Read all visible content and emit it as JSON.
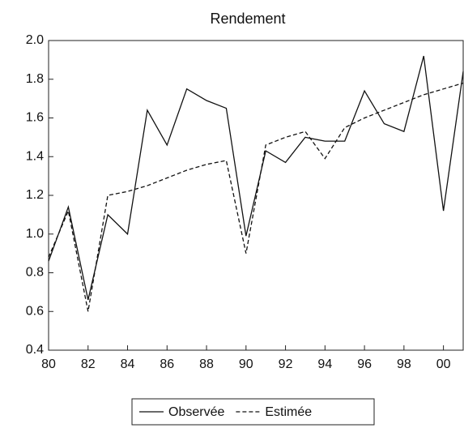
{
  "chart_data": {
    "type": "line",
    "title": "Rendement",
    "x": [
      1980,
      1981,
      1982,
      1983,
      1984,
      1985,
      1986,
      1987,
      1988,
      1989,
      1990,
      1991,
      1992,
      1993,
      1994,
      1995,
      1996,
      1997,
      1998,
      1999,
      2000,
      2001
    ],
    "series": [
      {
        "name": "Observée",
        "color": "#111111",
        "dash": false,
        "values": [
          0.86,
          1.14,
          0.66,
          1.1,
          1.0,
          1.64,
          1.46,
          1.75,
          1.69,
          1.65,
          0.99,
          1.43,
          1.37,
          1.5,
          1.48,
          1.48,
          1.74,
          1.57,
          1.53,
          1.92,
          1.12,
          1.84
        ]
      },
      {
        "name": "Estimée",
        "color": "#111111",
        "dash": true,
        "values": [
          0.88,
          1.12,
          0.6,
          1.2,
          1.22,
          1.25,
          1.29,
          1.33,
          1.36,
          1.38,
          0.9,
          1.46,
          1.5,
          1.53,
          1.39,
          1.55,
          1.6,
          1.64,
          1.68,
          1.72,
          1.75,
          1.78
        ]
      }
    ],
    "xlim": [
      1980,
      2001
    ],
    "xticks": [
      {
        "value": 1980,
        "label": "80"
      },
      {
        "value": 1982,
        "label": "82"
      },
      {
        "value": 1984,
        "label": "84"
      },
      {
        "value": 1986,
        "label": "86"
      },
      {
        "value": 1988,
        "label": "88"
      },
      {
        "value": 1990,
        "label": "90"
      },
      {
        "value": 1992,
        "label": "92"
      },
      {
        "value": 1994,
        "label": "94"
      },
      {
        "value": 1996,
        "label": "96"
      },
      {
        "value": 1998,
        "label": "98"
      },
      {
        "value": 2000,
        "label": "00"
      }
    ],
    "ylim": [
      0.4,
      2.0
    ],
    "yticks": [
      0.4,
      0.6,
      0.8,
      {
        "value": 1,
        "label": "1.0"
      },
      1.2,
      1.4,
      1.6,
      1.8,
      {
        "value": 2,
        "label": "2.0"
      }
    ],
    "legend": "bottom"
  }
}
